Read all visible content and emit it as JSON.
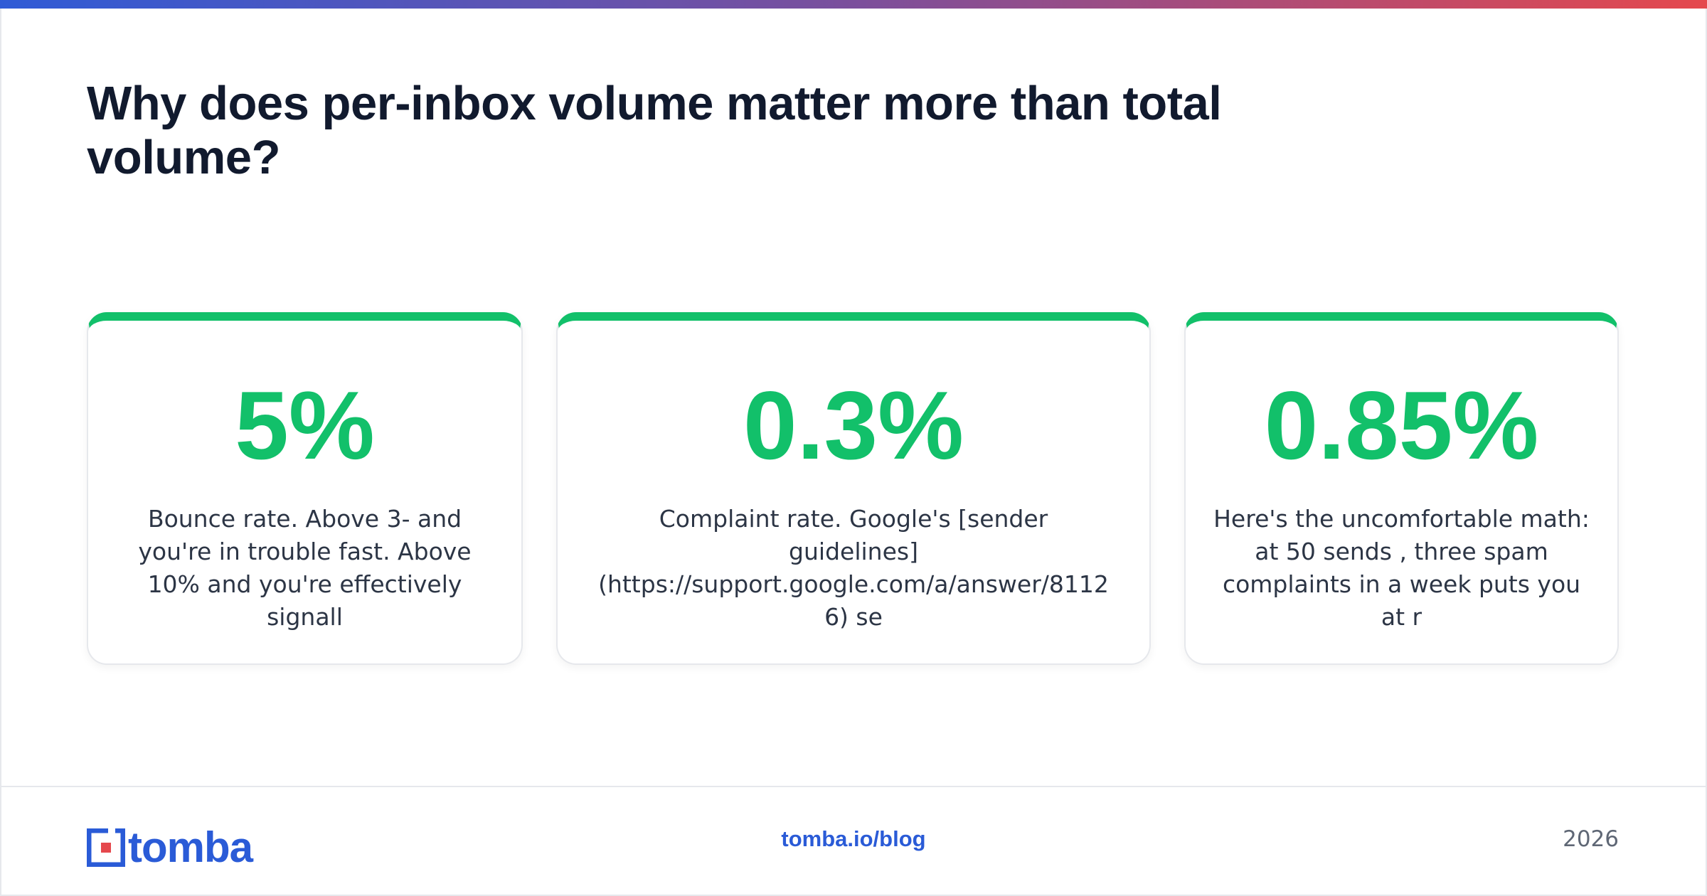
{
  "header": {
    "title": "Why does per-inbox volume matter more than total volume?"
  },
  "cards": [
    {
      "stat": "5%",
      "text": "Bounce rate. Above 3- and you're in trouble fast. Above 10% and you're effectively signall"
    },
    {
      "stat": "0.3%",
      "text": "Complaint rate. Google's [sender guidelines](https://support.google.com/a/answer/81126) se"
    },
    {
      "stat": "0.85%",
      "text": "Here's the uncomfortable math: at 50 sends , three spam complaints in a week puts you at r"
    }
  ],
  "footer": {
    "brand": "tomba",
    "url": "tomba.io/blog",
    "year": "2026"
  }
}
